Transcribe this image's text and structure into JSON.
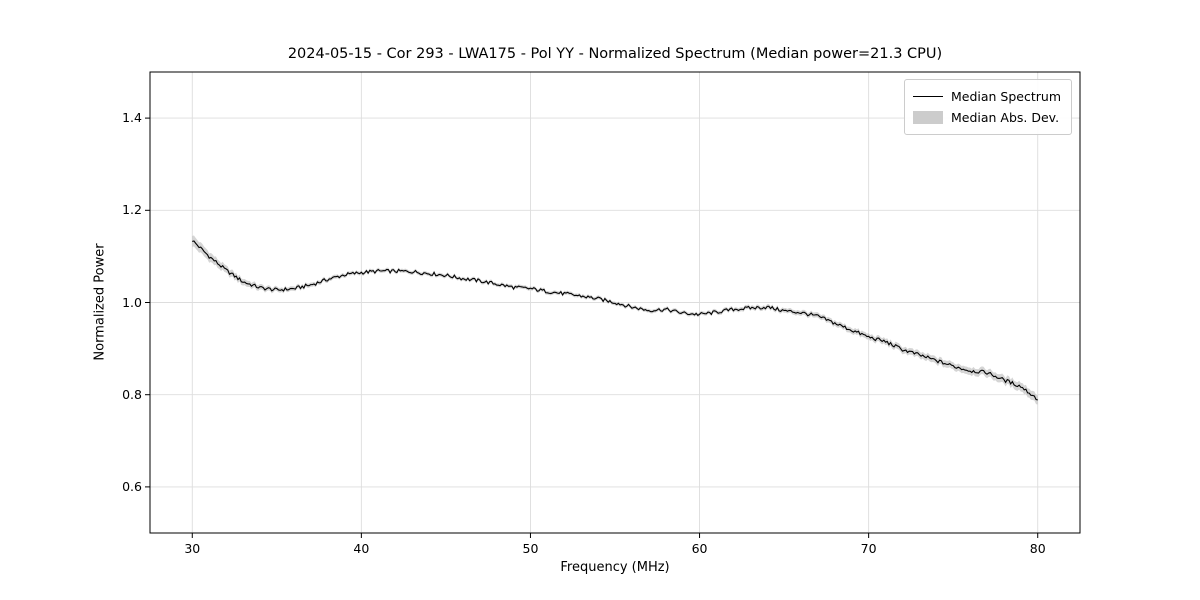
{
  "figure": {
    "background": "#ffffff"
  },
  "chart_data": {
    "type": "line",
    "title": "2024-05-15 - Cor 293 - LWA175 - Pol YY - Normalized Spectrum (Median power=21.3 CPU)",
    "xlabel": "Frequency (MHz)",
    "ylabel": "Normalized Power",
    "xlim": [
      27.5,
      82.5
    ],
    "ylim": [
      0.5,
      1.5
    ],
    "grid": true,
    "grid_color": "#dddddd",
    "xticks": [
      {
        "v": 30,
        "label": "30"
      },
      {
        "v": 40,
        "label": "40"
      },
      {
        "v": 50,
        "label": "50"
      },
      {
        "v": 60,
        "label": "60"
      },
      {
        "v": 70,
        "label": "70"
      },
      {
        "v": 80,
        "label": "80"
      }
    ],
    "yticks": [
      {
        "v": 0.6,
        "label": "0.6"
      },
      {
        "v": 0.8,
        "label": "0.8"
      },
      {
        "v": 1.0,
        "label": "1.0"
      },
      {
        "v": 1.2,
        "label": "1.2"
      },
      {
        "v": 1.4,
        "label": "1.4"
      }
    ],
    "legend": {
      "position": "upper right",
      "entries": [
        {
          "label": "Median Spectrum",
          "type": "line",
          "color": "#000000"
        },
        {
          "label": "Median Abs. Dev.",
          "type": "patch",
          "color": "#cccccc"
        }
      ]
    },
    "noise_amplitude": 0.004,
    "series": [
      {
        "name": "Median Spectrum",
        "color": "#000000",
        "x": [
          30,
          31,
          32,
          33,
          34,
          35,
          36,
          37,
          38,
          39,
          40,
          41,
          42,
          43,
          44,
          45,
          46,
          47,
          48,
          49,
          50,
          51,
          52,
          53,
          54,
          55,
          56,
          57,
          58,
          59,
          60,
          61,
          62,
          63,
          64,
          65,
          66,
          67,
          68,
          69,
          70,
          71,
          72,
          73,
          74,
          75,
          76,
          77,
          78,
          79,
          80
        ],
        "y": [
          1.135,
          1.1,
          1.07,
          1.045,
          1.032,
          1.027,
          1.03,
          1.038,
          1.05,
          1.06,
          1.065,
          1.068,
          1.068,
          1.067,
          1.063,
          1.059,
          1.052,
          1.047,
          1.04,
          1.033,
          1.03,
          1.024,
          1.019,
          1.014,
          1.008,
          1.0,
          0.99,
          0.983,
          0.985,
          0.977,
          0.974,
          0.979,
          0.985,
          0.988,
          0.99,
          0.982,
          0.978,
          0.97,
          0.955,
          0.94,
          0.925,
          0.915,
          0.898,
          0.886,
          0.874,
          0.862,
          0.852,
          0.848,
          0.832,
          0.818,
          0.79
        ]
      },
      {
        "name": "Median Abs. Dev.",
        "color": "#b3b3b3",
        "mad_x": [
          30,
          32,
          35,
          40,
          50,
          60,
          65,
          68,
          72,
          76,
          80
        ],
        "mad": [
          0.012,
          0.008,
          0.005,
          0.004,
          0.004,
          0.004,
          0.005,
          0.006,
          0.007,
          0.008,
          0.01
        ]
      }
    ]
  }
}
